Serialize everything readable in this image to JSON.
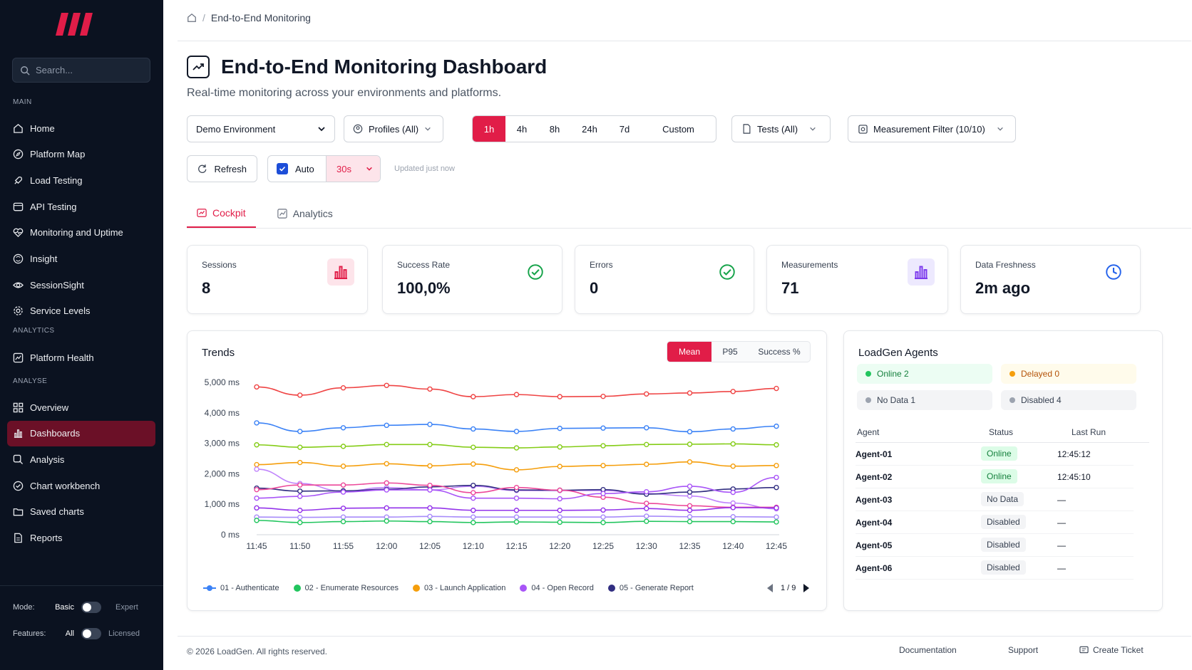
{
  "sidebar": {
    "search_placeholder": "Search...",
    "sections": {
      "main": "MAIN",
      "analytics": "ANALYTICS",
      "analyse": "ANALYSE"
    },
    "main_items": [
      {
        "label": "Home",
        "icon": "home-icon"
      },
      {
        "label": "Platform Map",
        "icon": "compass-icon"
      },
      {
        "label": "Load Testing",
        "icon": "rocket-icon"
      },
      {
        "label": "API Testing",
        "icon": "api-icon"
      },
      {
        "label": "Monitoring and Uptime",
        "icon": "heartbeat-icon"
      },
      {
        "label": "Insight",
        "icon": "brain-icon"
      },
      {
        "label": "SessionSight",
        "icon": "eye-icon"
      },
      {
        "label": "Service Levels",
        "icon": "gear-icon"
      }
    ],
    "analytics_items": [
      {
        "label": "Platform Health",
        "icon": "trend-icon"
      }
    ],
    "analyse_items": [
      {
        "label": "Overview",
        "icon": "grid-icon"
      },
      {
        "label": "Dashboards",
        "icon": "bar-chart-icon",
        "active": true
      },
      {
        "label": "Analysis",
        "icon": "magnify-chart-icon"
      },
      {
        "label": "Chart workbench",
        "icon": "chart-check-icon"
      },
      {
        "label": "Saved charts",
        "icon": "folder-icon"
      },
      {
        "label": "Reports",
        "icon": "report-icon"
      }
    ],
    "mode": {
      "label": "Mode:",
      "left": "Basic",
      "right": "Expert"
    },
    "features": {
      "label": "Features:",
      "left": "All",
      "right": "Licensed"
    }
  },
  "breadcrumb": {
    "current": "End-to-End Monitoring"
  },
  "page": {
    "title": "End-to-End Monitoring Dashboard",
    "subtitle": "Real-time monitoring across your environments and platforms."
  },
  "filters": {
    "environment": "Demo Environment",
    "profiles": "Profiles (All)",
    "ranges": [
      "1h",
      "4h",
      "8h",
      "24h",
      "7d",
      "Custom"
    ],
    "selected_range": "1h",
    "tests": "Tests (All)",
    "measurement": "Measurement Filter (10/10)",
    "refresh": "Refresh",
    "auto": "Auto",
    "interval": "30s",
    "updated": "Updated just now"
  },
  "tabs": [
    {
      "label": "Cockpit",
      "active": true
    },
    {
      "label": "Analytics"
    }
  ],
  "kpis": [
    {
      "label": "Sessions",
      "value": "8",
      "icon": "bar-chart-icon",
      "color": "#e11d48"
    },
    {
      "label": "Success Rate",
      "value": "100,0%",
      "icon": "check-circle-icon",
      "color": "#16a34a"
    },
    {
      "label": "Errors",
      "value": "0",
      "icon": "check-circle-icon",
      "color": "#16a34a"
    },
    {
      "label": "Measurements",
      "value": "71",
      "icon": "bar-chart-icon",
      "color": "#7c3aed"
    },
    {
      "label": "Data Freshness",
      "value": "2m ago",
      "icon": "clock-icon",
      "color": "#2563eb"
    }
  ],
  "trends": {
    "title": "Trends",
    "modes": [
      "Mean",
      "P95",
      "Success %"
    ],
    "selected_mode": "Mean",
    "legend": [
      {
        "label": "01 - Authenticate",
        "color": "#3b82f6"
      },
      {
        "label": "02 - Enumerate Resources",
        "color": "#22c55e"
      },
      {
        "label": "03 - Launch Application",
        "color": "#f59e0b"
      },
      {
        "label": "04 - Open Record",
        "color": "#a855f7"
      },
      {
        "label": "05 - Generate Report",
        "color": "#312e81"
      }
    ],
    "page": "1 / 9"
  },
  "chart_data": {
    "type": "line",
    "title": "Trends",
    "x": [
      "11:45",
      "11:50",
      "11:55",
      "12:00",
      "12:05",
      "12:10",
      "12:15",
      "12:20",
      "12:25",
      "12:30",
      "12:35",
      "12:40",
      "12:45"
    ],
    "yticks": [
      "0 ms",
      "1,000 ms",
      "2,000 ms",
      "3,000 ms",
      "4,000 ms",
      "5,000 ms"
    ],
    "ylim": [
      0,
      5000
    ],
    "series": [
      {
        "color": "#ef4444",
        "values": [
          4850,
          4580,
          4820,
          4900,
          4780,
          4530,
          4600,
          4530,
          4540,
          4620,
          4650,
          4700,
          4800
        ]
      },
      {
        "color": "#3b82f6",
        "name": "01 - Authenticate",
        "values": [
          3670,
          3390,
          3510,
          3590,
          3620,
          3470,
          3390,
          3490,
          3500,
          3510,
          3380,
          3470,
          3560
        ]
      },
      {
        "color": "#84cc16",
        "values": [
          2950,
          2870,
          2900,
          2960,
          2960,
          2870,
          2850,
          2880,
          2920,
          2960,
          2970,
          2980,
          2950
        ]
      },
      {
        "color": "#f59e0b",
        "name": "03 - Launch Application",
        "values": [
          2300,
          2370,
          2250,
          2330,
          2260,
          2320,
          2130,
          2240,
          2270,
          2310,
          2390,
          2250,
          2270
        ]
      },
      {
        "color": "#c084fc",
        "values": [
          2150,
          1680,
          1430,
          1550,
          1470,
          1590,
          1450,
          1450,
          1450,
          1350,
          1270,
          1040,
          850
        ]
      },
      {
        "color": "#312e81",
        "name": "05 - Generate Report",
        "values": [
          1530,
          1430,
          1440,
          1490,
          1570,
          1620,
          1470,
          1460,
          1480,
          1330,
          1400,
          1500,
          1550
        ]
      },
      {
        "color": "#ec4899",
        "values": [
          1480,
          1630,
          1630,
          1700,
          1620,
          1380,
          1550,
          1460,
          1230,
          1030,
          950,
          900,
          900
        ]
      },
      {
        "color": "#a855f7",
        "name": "04 - Open Record",
        "values": [
          1200,
          1260,
          1400,
          1470,
          1470,
          1200,
          1200,
          1180,
          1350,
          1410,
          1590,
          1390,
          1880
        ]
      },
      {
        "color": "#9333ea",
        "values": [
          880,
          800,
          870,
          880,
          880,
          800,
          800,
          800,
          810,
          860,
          800,
          890,
          880
        ]
      },
      {
        "color": "#a78bfa",
        "values": [
          580,
          570,
          580,
          580,
          600,
          580,
          580,
          580,
          580,
          610,
          590,
          590,
          580
        ]
      },
      {
        "color": "#22c55e",
        "name": "02 - Enumerate Resources",
        "values": [
          470,
          400,
          430,
          450,
          430,
          400,
          420,
          410,
          400,
          440,
          430,
          430,
          420
        ]
      }
    ]
  },
  "agents": {
    "title": "LoadGen Agents",
    "summary": [
      {
        "label": "Online 2",
        "dot": "#22c55e",
        "bg": "#ecfdf3",
        "color": "#15803d"
      },
      {
        "label": "Delayed 0",
        "dot": "#f59e0b",
        "bg": "#fffbeb",
        "color": "#b45309"
      },
      {
        "label": "No Data 1",
        "dot": "#9ca3af",
        "bg": "#f3f4f6",
        "color": "#374151"
      },
      {
        "label": "Disabled 4",
        "dot": "#9ca3af",
        "bg": "#f3f4f6",
        "color": "#374151"
      }
    ],
    "columns": [
      "Agent",
      "Status",
      "Last Run"
    ],
    "rows": [
      {
        "agent": "Agent-01",
        "status": "Online",
        "last": "12:45:12"
      },
      {
        "agent": "Agent-02",
        "status": "Online",
        "last": "12:45:10"
      },
      {
        "agent": "Agent-03",
        "status": "No Data",
        "last": "—"
      },
      {
        "agent": "Agent-04",
        "status": "Disabled",
        "last": "—"
      },
      {
        "agent": "Agent-05",
        "status": "Disabled",
        "last": "—"
      },
      {
        "agent": "Agent-06",
        "status": "Disabled",
        "last": "—"
      }
    ]
  },
  "footer": {
    "copyright": "© 2026 LoadGen. All rights reserved.",
    "links": [
      "Documentation",
      "Support",
      "Create Ticket"
    ]
  }
}
